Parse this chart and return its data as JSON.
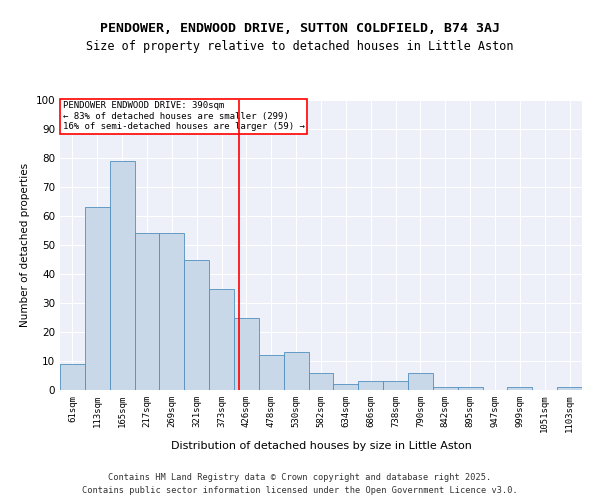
{
  "title": "PENDOWER, ENDWOOD DRIVE, SUTTON COLDFIELD, B74 3AJ",
  "subtitle": "Size of property relative to detached houses in Little Aston",
  "xlabel": "Distribution of detached houses by size in Little Aston",
  "ylabel": "Number of detached properties",
  "bar_labels": [
    "61sqm",
    "113sqm",
    "165sqm",
    "217sqm",
    "269sqm",
    "321sqm",
    "373sqm",
    "426sqm",
    "478sqm",
    "530sqm",
    "582sqm",
    "634sqm",
    "686sqm",
    "738sqm",
    "790sqm",
    "842sqm",
    "895sqm",
    "947sqm",
    "999sqm",
    "1051sqm",
    "1103sqm"
  ],
  "bar_heights": [
    9,
    63,
    79,
    54,
    54,
    45,
    35,
    25,
    12,
    13,
    6,
    2,
    3,
    3,
    6,
    1,
    1,
    0,
    1,
    0,
    1
  ],
  "bar_color": "#c8d8e8",
  "bar_edge_color": "#5090c0",
  "red_line_x": 6.72,
  "annotation_title": "PENDOWER ENDWOOD DRIVE: 390sqm",
  "annotation_line1": "← 83% of detached houses are smaller (299)",
  "annotation_line2": "16% of semi-detached houses are larger (59) →",
  "ylim": [
    0,
    100
  ],
  "yticks": [
    0,
    10,
    20,
    30,
    40,
    50,
    60,
    70,
    80,
    90,
    100
  ],
  "background_color": "#edf0f8",
  "footer_line1": "Contains HM Land Registry data © Crown copyright and database right 2025.",
  "footer_line2": "Contains public sector information licensed under the Open Government Licence v3.0.",
  "title_fontsize": 9.5,
  "subtitle_fontsize": 8.5
}
